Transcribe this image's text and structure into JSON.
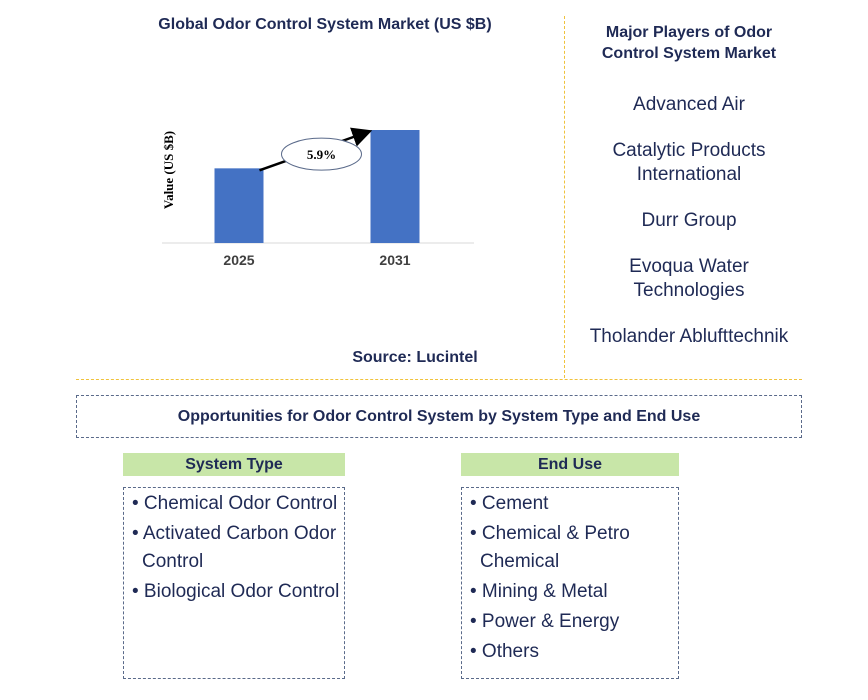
{
  "chart_data": {
    "type": "bar",
    "title": "Global Odor Control System Market (US $B)",
    "categories": [
      "2025",
      "2031"
    ],
    "values": [
      0.74,
      1.12
    ],
    "ylabel": "Value (US $B)",
    "xlabel": "",
    "ylim": [
      0,
      1.12
    ],
    "grid": false,
    "bar_color": "#4472c4",
    "annotation": {
      "label": "5.9%"
    }
  },
  "source": "Source: Lucintel",
  "players": {
    "title_lines": [
      "Major Players of Odor",
      "Control System Market"
    ],
    "items": [
      [
        "Advanced Air"
      ],
      [
        "Catalytic Products",
        "International"
      ],
      [
        "Durr Group"
      ],
      [
        "Evoqua Water",
        "Technologies"
      ],
      [
        "Tholander Ablufttechnik"
      ]
    ]
  },
  "opportunities": {
    "title": "Opportunities for Odor Control System by System Type and End Use"
  },
  "system_type": {
    "header": "System Type",
    "items": [
      [
        "• Chemical Odor Control"
      ],
      [
        "• Activated Carbon Odor",
        "Control"
      ],
      [
        "• Biological Odor Control"
      ]
    ]
  },
  "end_use": {
    "header": "End Use",
    "items": [
      [
        "• Cement"
      ],
      [
        "• Chemical & Petro",
        "Chemical"
      ],
      [
        "• Mining & Metal"
      ],
      [
        "• Power & Energy"
      ],
      [
        "• Others"
      ]
    ]
  },
  "colors": {
    "accent_green": "#c8e6a8",
    "divider": "#f0c23c",
    "text": "#1f2a55"
  }
}
